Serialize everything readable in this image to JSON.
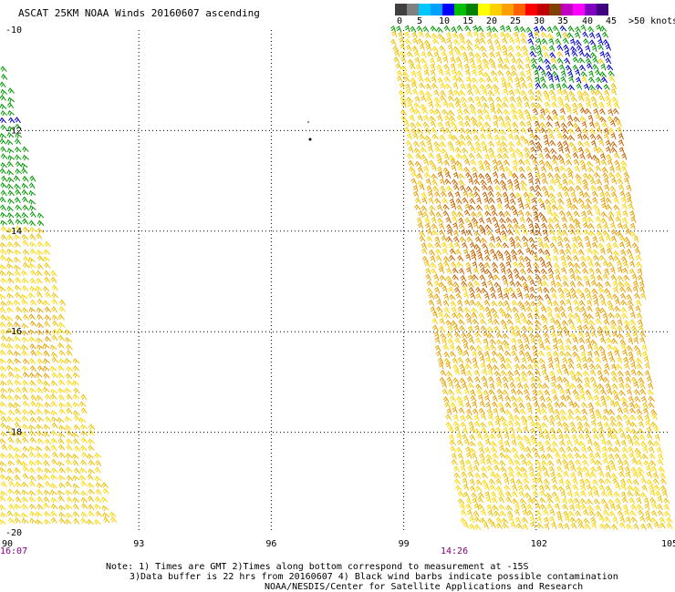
{
  "title": "ASCAT 25KM NOAA Winds 20160607 ascending",
  "scale": {
    "colors": [
      "#404040",
      "#808080",
      "#00c8ff",
      "#00a0ff",
      "#0000ff",
      "#00c000",
      "#008000",
      "#ffff00",
      "#ffd000",
      "#ffa000",
      "#ff6000",
      "#ff0000",
      "#c00000",
      "#804000",
      "#c000c0",
      "#ff00ff",
      "#8000c0",
      "#400080"
    ],
    "labels": [
      "0",
      "5",
      "10",
      "15",
      "20",
      "25",
      "30",
      "35",
      "40",
      "45",
      ">50 knots"
    ]
  },
  "map": {
    "lon_ticks": [
      "90",
      "93",
      "96",
      "99",
      "102",
      "105"
    ],
    "lat_ticks": [
      "-10",
      "-12",
      "-14",
      "-16",
      "-18",
      "-20"
    ],
    "pass_times": [
      "16:07",
      "14:26"
    ],
    "time_color": "#800080",
    "barb_colors": {
      "blue": "#0000cc",
      "green": "#009900",
      "yellow": "#ffd700",
      "yellow2": "#f0c000",
      "orange": "#e8a000",
      "brown": "#c86400"
    }
  },
  "notes": [
    "Note: 1) Times are GMT 2)Times along bottom correspond to measurement at -15S",
    "3)Data buffer is 22 hrs from 20160607 4) Black wind barbs indicate possible contamination",
    "NOAA/NESDIS/Center for Satellite Applications and Research"
  ]
}
